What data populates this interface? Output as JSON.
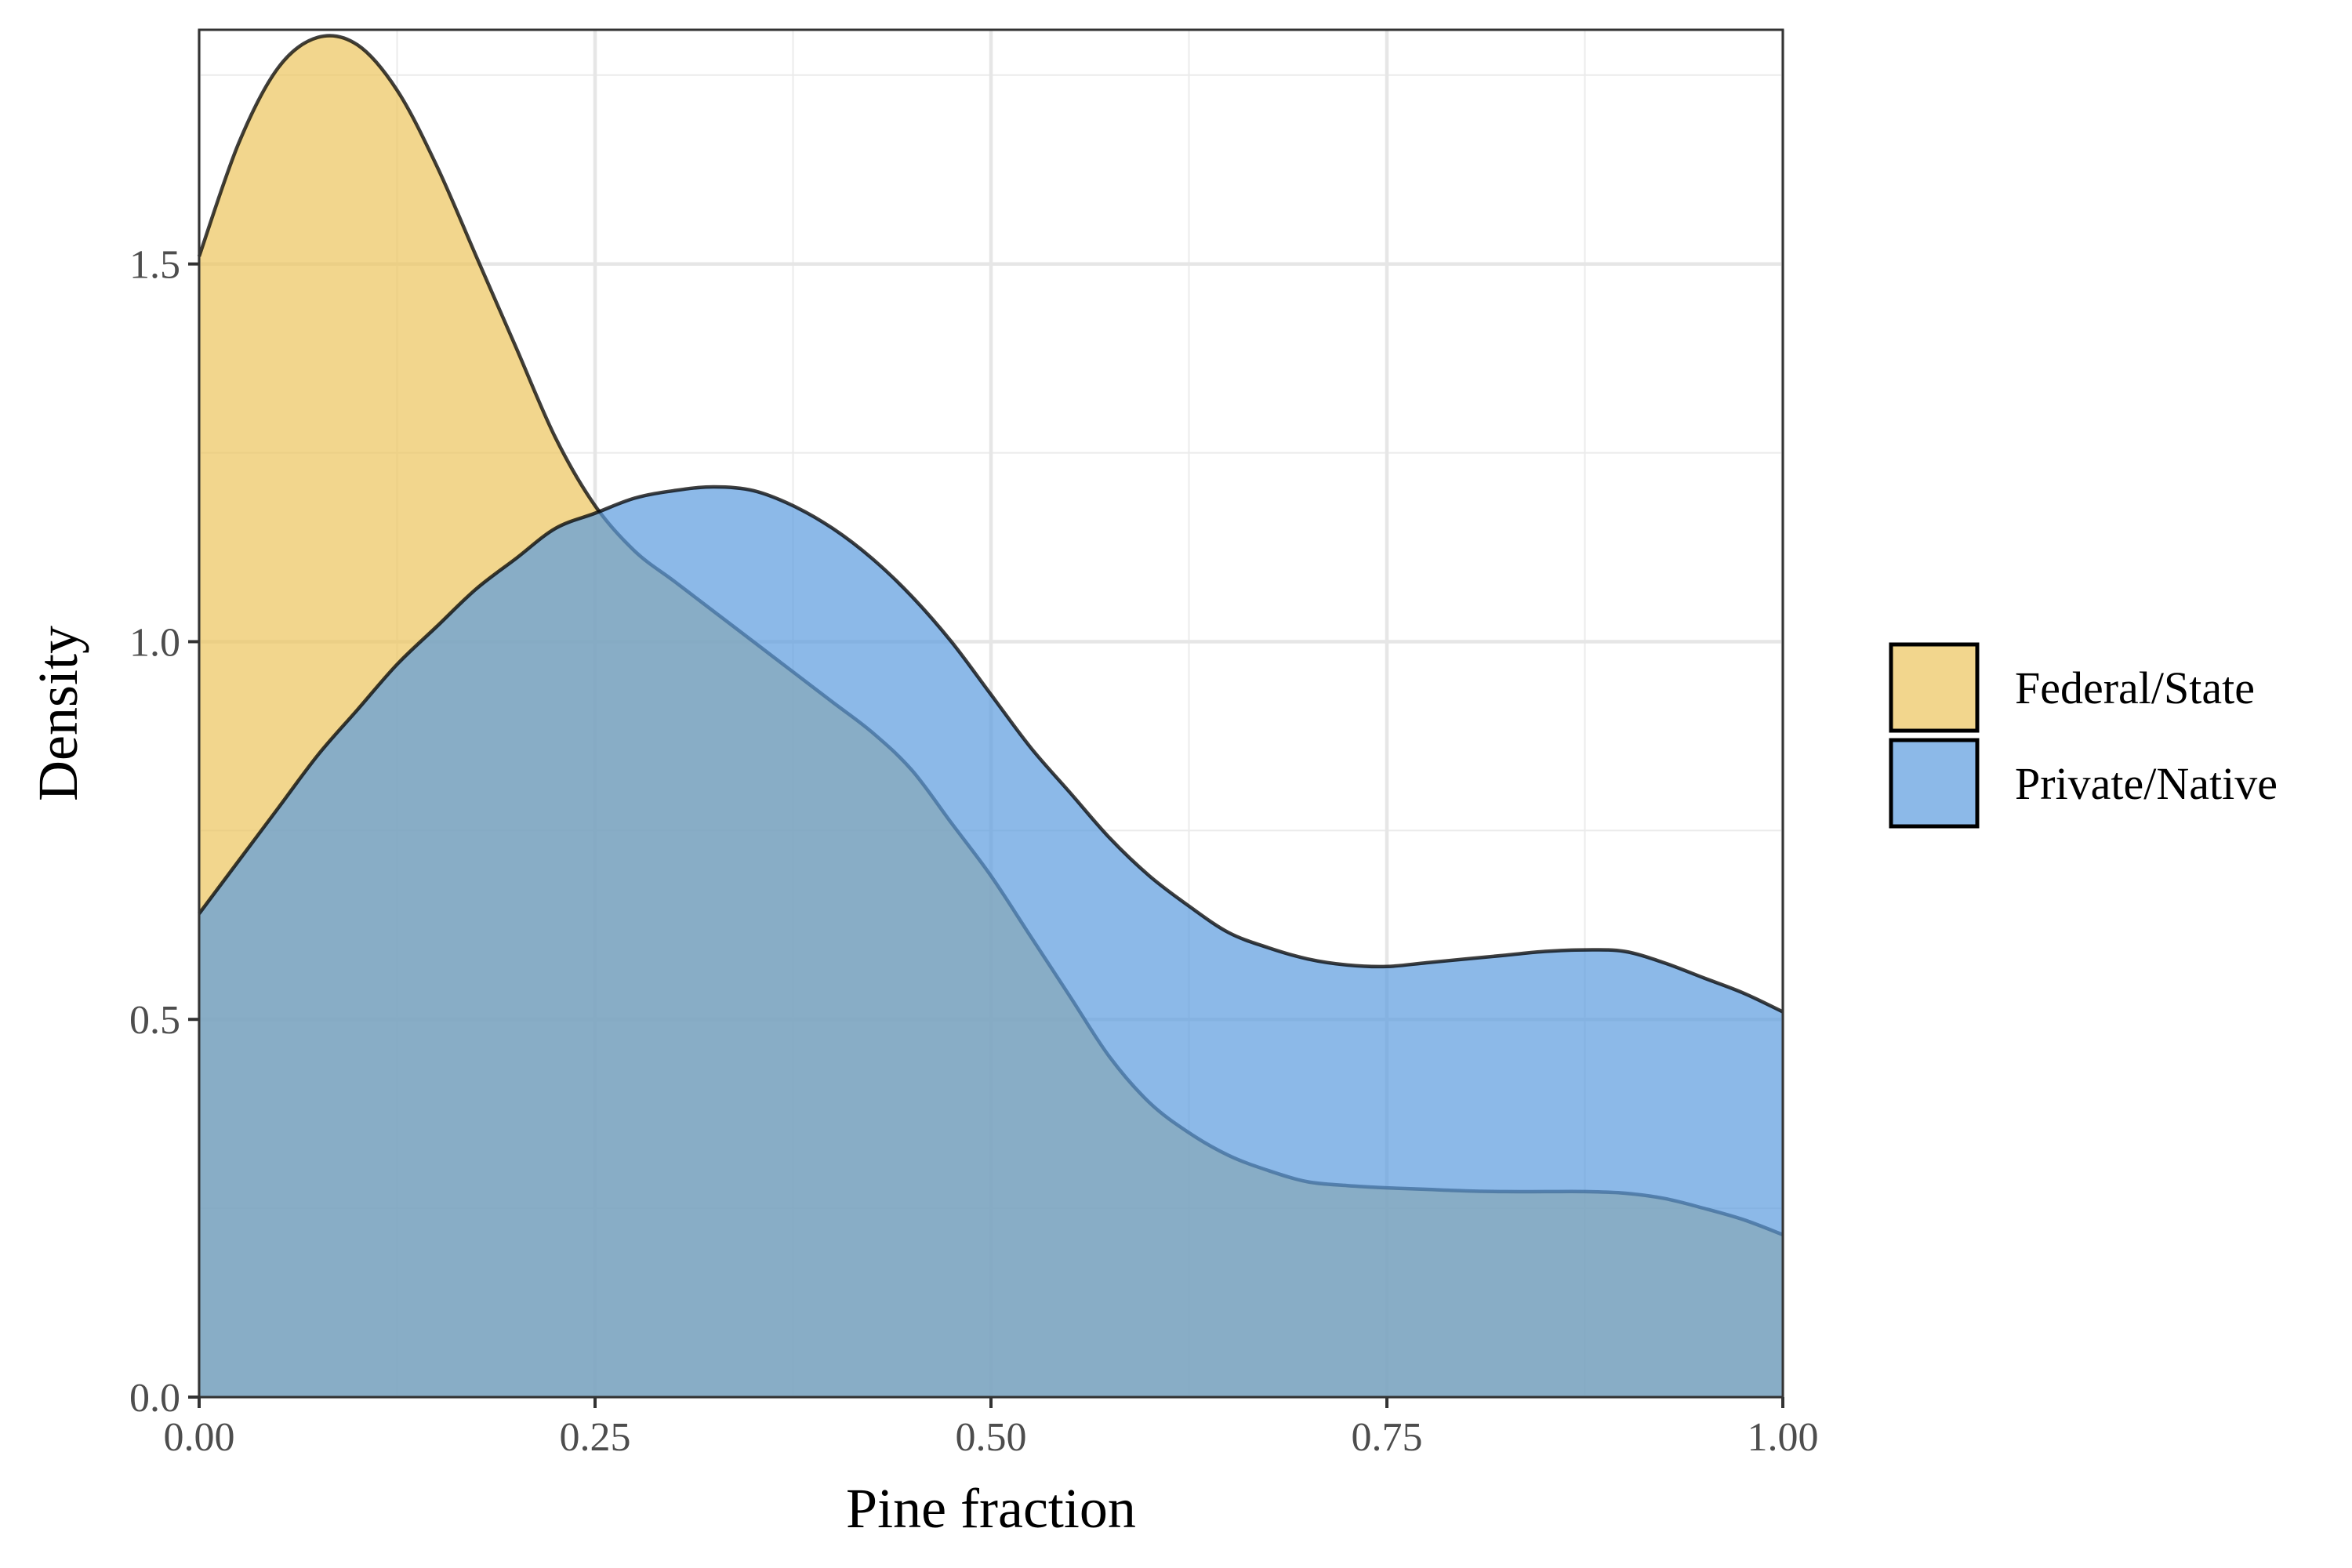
{
  "chart_data": {
    "type": "area",
    "subtype": "density",
    "title": "",
    "xlabel": "Pine fraction",
    "ylabel": "Density",
    "xlim": [
      0,
      1
    ],
    "ylim": [
      0,
      1.81
    ],
    "x_ticks": [
      0,
      0.25,
      0.5,
      0.75,
      1
    ],
    "x_tick_labels": [
      "0.00",
      "0.25",
      "0.50",
      "0.75",
      "1.00"
    ],
    "y_ticks": [
      0,
      0.5,
      1,
      1.5
    ],
    "y_tick_labels": [
      "0.0",
      "0.5",
      "1.0",
      "1.5"
    ],
    "grid": true,
    "legend_position": "right",
    "series": [
      {
        "name": "Federal/State",
        "color": "#ecc45c",
        "x": [
          0,
          0.025,
          0.05,
          0.075,
          0.1,
          0.125,
          0.15,
          0.175,
          0.2,
          0.225,
          0.25,
          0.275,
          0.3,
          0.325,
          0.35,
          0.375,
          0.4,
          0.425,
          0.45,
          0.475,
          0.5,
          0.525,
          0.55,
          0.575,
          0.6,
          0.625,
          0.65,
          0.675,
          0.7,
          0.725,
          0.75,
          0.775,
          0.8,
          0.825,
          0.85,
          0.875,
          0.9,
          0.925,
          0.95,
          0.975,
          1
        ],
        "values": [
          1.51,
          1.66,
          1.76,
          1.8,
          1.79,
          1.73,
          1.63,
          1.51,
          1.39,
          1.27,
          1.18,
          1.12,
          1.08,
          1.04,
          1.0,
          0.96,
          0.92,
          0.88,
          0.83,
          0.76,
          0.69,
          0.61,
          0.53,
          0.45,
          0.39,
          0.35,
          0.32,
          0.3,
          0.285,
          0.28,
          0.277,
          0.275,
          0.273,
          0.272,
          0.272,
          0.272,
          0.27,
          0.263,
          0.25,
          0.235,
          0.215
        ]
      },
      {
        "name": "Private/Native",
        "color": "#5b9bde",
        "x": [
          0,
          0.025,
          0.05,
          0.075,
          0.1,
          0.125,
          0.15,
          0.175,
          0.2,
          0.225,
          0.25,
          0.275,
          0.3,
          0.325,
          0.35,
          0.375,
          0.4,
          0.425,
          0.45,
          0.475,
          0.5,
          0.525,
          0.55,
          0.575,
          0.6,
          0.625,
          0.65,
          0.675,
          0.7,
          0.725,
          0.75,
          0.775,
          0.8,
          0.825,
          0.85,
          0.875,
          0.9,
          0.925,
          0.95,
          0.975,
          1
        ],
        "values": [
          0.64,
          0.71,
          0.78,
          0.85,
          0.91,
          0.97,
          1.02,
          1.07,
          1.11,
          1.15,
          1.17,
          1.19,
          1.2,
          1.205,
          1.2,
          1.18,
          1.15,
          1.11,
          1.06,
          1.0,
          0.93,
          0.86,
          0.8,
          0.74,
          0.69,
          0.65,
          0.615,
          0.595,
          0.58,
          0.572,
          0.57,
          0.575,
          0.58,
          0.585,
          0.59,
          0.592,
          0.59,
          0.575,
          0.555,
          0.535,
          0.51
        ]
      }
    ]
  }
}
